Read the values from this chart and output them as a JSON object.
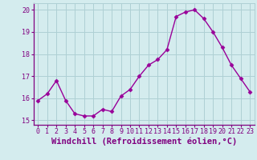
{
  "x": [
    0,
    1,
    2,
    3,
    4,
    5,
    6,
    7,
    8,
    9,
    10,
    11,
    12,
    13,
    14,
    15,
    16,
    17,
    18,
    19,
    20,
    21,
    22,
    23
  ],
  "y": [
    15.9,
    16.2,
    16.8,
    15.9,
    15.3,
    15.2,
    15.2,
    15.5,
    15.4,
    16.1,
    16.4,
    17.0,
    17.5,
    17.75,
    18.2,
    19.7,
    19.9,
    20.0,
    19.6,
    19.0,
    18.3,
    17.5,
    16.9,
    16.3
  ],
  "line_color": "#990099",
  "marker": "D",
  "markersize": 2.5,
  "linewidth": 1.0,
  "xlabel": "Windchill (Refroidissement éolien,°C)",
  "xlim": [
    -0.5,
    23.5
  ],
  "ylim": [
    14.8,
    20.3
  ],
  "yticks": [
    15,
    16,
    17,
    18,
    19,
    20
  ],
  "xticks": [
    0,
    1,
    2,
    3,
    4,
    5,
    6,
    7,
    8,
    9,
    10,
    11,
    12,
    13,
    14,
    15,
    16,
    17,
    18,
    19,
    20,
    21,
    22,
    23
  ],
  "bg_color": "#d4ecee",
  "grid_color": "#aed0d4",
  "tick_color": "#800080",
  "label_color": "#800080",
  "xlabel_fontsize": 7.5,
  "tick_fontsize": 6.0
}
